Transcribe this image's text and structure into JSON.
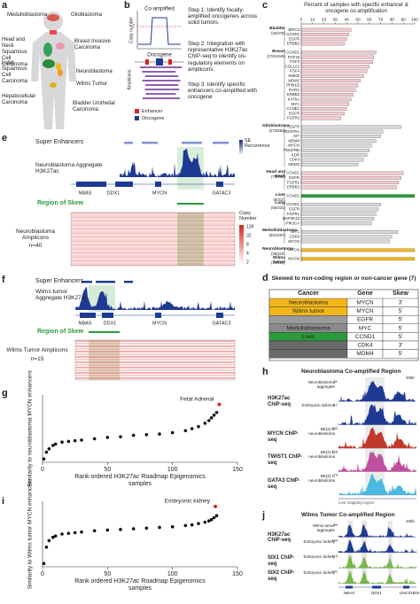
{
  "panel_labels": [
    "a",
    "b",
    "c",
    "d",
    "e",
    "f",
    "g",
    "h",
    "i",
    "j"
  ],
  "panels": {
    "a": {
      "cancers": [
        "Medulloblastoma",
        "Glioblastoma",
        "Head and Neck Squamous Cell Carcinoma",
        "Breast Invasive Carcinoma",
        "Lung Squamous Cell Carcinoma",
        "Neuroblastoma",
        "Wilms Tumor",
        "Hepatocellular Carcinoma",
        "Bladder Urothelial Carcinoma"
      ]
    },
    "b": {
      "coamplified": "Co-amplified",
      "y_label": "Copy number",
      "threshold": "7",
      "oncogene": "Oncogene",
      "amplicons": "Amplicons",
      "legend": [
        "Enhancer",
        "Oncogene"
      ],
      "steps": [
        "Step 1: Identify focally-amplified oncogenes across solid tumors.",
        "Step 2: Integration with representative H3K27ac ChIP-seq to identify cis-regulatory elements on amplicons.",
        "Step 3: Identify specific enhancers co-amplified with oncogene"
      ]
    },
    "d": {
      "title": "Skewed to non-coding region or non-cancer gene (7)",
      "headers": [
        "Cancer",
        "Gene",
        "Skew"
      ],
      "rows": [
        {
          "cancer": "Neuroblastoma",
          "gene": "MYCN",
          "skew": "3'",
          "color": "#f3b71c",
          "gene_color": "#d7261e"
        },
        {
          "cancer": "Wilms tumor",
          "gene": "MYCN",
          "skew": "5'",
          "color": "#f3b71c",
          "gene_color": "#d7261e"
        },
        {
          "gene": "EGFR",
          "skew": "5'",
          "color": "#9a9a9a",
          "gene_color": "#d7261e"
        },
        {
          "cancer": "Medulloblastoma",
          "gene": "MYC",
          "skew": "5'",
          "color": "#8a8a8a",
          "gene_color": "#d7261e"
        },
        {
          "cancer": "Liver",
          "gene": "CCND1",
          "skew": "5'",
          "color": "#2a9a3a",
          "gene_color": "#222222"
        },
        {
          "gene": "CDK4",
          "skew": "3'",
          "color": "#6a6a6a",
          "gene_color": "#222222"
        },
        {
          "gene": "MDM4",
          "skew": "5'",
          "color": "#6a6a6a",
          "gene_color": "#222222"
        }
      ]
    },
    "e": {
      "super_enhancers": "Super Enhancers",
      "se_recurrence": "SE Recurrence",
      "track": "Neuroblastoma Aggregate H3K27ac",
      "genes": [
        "NBAS",
        "DDX1",
        "MYCN",
        "GATAC3"
      ],
      "skew": "Region of Skew",
      "amplicons": "Neuroblastoma Amplicons",
      "n": "n=40",
      "copy_number": "Copy Number",
      "scale": [
        "128",
        "32",
        "8",
        "4",
        "2"
      ]
    },
    "f": {
      "super_enhancers": "Super Enhancers",
      "track": "Wilms tumor Aggregate H3K27ac",
      "genes": [
        "NBAS",
        "DDX1",
        "MYCN",
        "GATAC3"
      ],
      "skew": "Region of Skew",
      "amplicons": "Wilms Tumor Amplicons",
      "n": "n=15"
    },
    "h": {
      "title": "Neuroblastoma Co-amplified Region",
      "scale": "20kb",
      "note": "Live mapping region",
      "tracks": [
        {
          "assay": "H3K27ac ChIP-seq",
          "color": "#1f3a93",
          "samples": [
            {
              "name": "Neuroblastoma aggregate",
              "max": "11"
            },
            {
              "name": "Embryonic adrenal",
              "max": "17"
            }
          ]
        },
        {
          "assay": "MYCN ChIP-seq",
          "color": "#c0392b",
          "samples": [
            {
              "name": "BE(2)-C neuroblastoma",
              "max": "352"
            }
          ]
        },
        {
          "assay": "TWIST1 ChIP-seq",
          "color": "#c04fa0",
          "samples": [
            {
              "name": "BE(2)-C neuroblastoma",
              "max": "128"
            }
          ]
        },
        {
          "assay": "GATA3 ChIP-seq",
          "color": "#4ab8e0",
          "samples": [
            {
              "name": "BE(2)-C neuroblastoma",
              "max": "74"
            }
          ]
        }
      ]
    },
    "j": {
      "title": "Wilms Tumor Co-amplified Region",
      "scale": "20kb",
      "genes": [
        "NBAS",
        "DDX1",
        "LINC01804"
      ],
      "tracks": [
        {
          "assay": "H3K27ac ChIP-seq",
          "color": "#1f3a93",
          "samples": [
            {
              "name": "Wilms tumor aggregate",
              "max": "59"
            },
            {
              "name": "Embryonic kidney",
              "max": "184"
            }
          ]
        },
        {
          "assay": "SIX1 ChIP-seq",
          "color": "#7ab648",
          "samples": [
            {
              "name": "Embryonic kidney",
              "max": "114"
            }
          ]
        },
        {
          "assay": "SIX2 ChIP-seq",
          "color": "#7ab648",
          "samples": [
            {
              "name": "Embryonic kidney",
              "max": "141"
            }
          ]
        }
      ]
    }
  },
  "chart_data": [
    {
      "type": "bar",
      "orientation": "horizontal",
      "title": "Percent of samples with specific enhancer & oncogene co-amplification",
      "xlim": [
        0,
        100
      ],
      "xticks": [
        0,
        10,
        20,
        30,
        40,
        50,
        60,
        70,
        80,
        90,
        100
      ],
      "groups": [
        {
          "name": "Bladder",
          "n": "(34/278)",
          "color": "#f4c9cf",
          "categories": [
            "BIRC3",
            "CCND1",
            "EGFR",
            "ERBB2"
          ],
          "values": [
            44,
            42,
            40,
            38
          ]
        },
        {
          "name": "Breast",
          "n": "(178/1045)",
          "color": "#f4c9cf",
          "categories": [
            "CCND1",
            "FGF19",
            "FGF3",
            "COL1A1",
            "FGF4",
            "IKBKB",
            "MDM2",
            "PPM1D",
            "RARA",
            "ERBB2",
            "KAT6A",
            "MYC",
            "CCNE1",
            "EGFR",
            "FGFR2"
          ],
          "values": [
            66,
            64,
            63,
            60,
            58,
            55,
            52,
            50,
            48,
            46,
            44,
            42,
            40,
            38,
            35
          ]
        },
        {
          "name": "Glioblastoma",
          "n": "(273/581)",
          "color": "#d9d9d9",
          "categories": [
            "EGFR",
            "PDGFRA",
            "KIT",
            "MDM4",
            "MYCN",
            "PDGFRB",
            "KDR",
            "CDK4",
            "MDM2"
          ],
          "values": [
            88,
            72,
            70,
            66,
            62,
            60,
            58,
            55,
            50
          ]
        },
        {
          "name": "Head and Neck",
          "n": "(78/492)",
          "color": "#f4c9cf",
          "categories": [
            "CCND1",
            "EGFR",
            "FGFR1",
            "ERBB2"
          ],
          "values": [
            90,
            88,
            86,
            84
          ]
        },
        {
          "name": "Liver",
          "n": "(9/314)",
          "color": "#2a9a3a",
          "categories": [
            "CCND1"
          ],
          "values": [
            100
          ]
        },
        {
          "name": "Lung",
          "n": "(55/431)",
          "color": "#d9d9d9",
          "categories": [
            "CCND1",
            "EGFR",
            "FGFR1",
            "MAP3K13",
            "PIK3CA"
          ],
          "values": [
            70,
            68,
            66,
            64,
            62
          ]
        },
        {
          "name": "Medulloblastoma",
          "n": "(63/1097)",
          "color": "#d9d9d9",
          "categories": [
            "MYC",
            "CDK6",
            "MYCN"
          ],
          "values": [
            85,
            80,
            78
          ]
        },
        {
          "name": "Neuroblastoma",
          "n": "(39/215)",
          "color": "#f3b71c",
          "categories": [
            "MYCN"
          ],
          "values": [
            100
          ]
        },
        {
          "name": "Wilms tumor",
          "n": "(14/124)",
          "color": "#f3b71c",
          "categories": [
            "MYCN"
          ],
          "values": [
            100
          ]
        }
      ]
    },
    {
      "type": "scatter",
      "xlabel": "Rank ordered H3K27ac Roadmap Epigenomics samples",
      "ylabel": "Similarity to neuroblastoma MYCN enhancers",
      "xlim": [
        0,
        150
      ],
      "xticks": [
        0,
        50,
        100,
        150
      ],
      "ylim": [
        0,
        1
      ],
      "color": "#111111",
      "x": [
        1,
        3,
        5,
        8,
        10,
        15,
        20,
        25,
        30,
        40,
        50,
        60,
        70,
        80,
        90,
        100,
        110,
        115,
        120,
        125,
        128,
        130,
        132,
        134
      ],
      "values": [
        0.05,
        0.15,
        0.2,
        0.25,
        0.27,
        0.3,
        0.31,
        0.32,
        0.33,
        0.35,
        0.37,
        0.38,
        0.4,
        0.41,
        0.42,
        0.44,
        0.47,
        0.5,
        0.53,
        0.58,
        0.62,
        0.66,
        0.7,
        0.74
      ],
      "highlight": {
        "x": 136,
        "y": 0.86,
        "color": "#d7261e",
        "label": "Fetal Adrenal"
      }
    },
    {
      "type": "scatter",
      "xlabel": "Rank ordered H3K27ac Roadmap Epigenomics samples",
      "ylabel": "Similarity to Wilms tumor MYCN enhancers",
      "xlim": [
        0,
        150
      ],
      "xticks": [
        0,
        50,
        100,
        150
      ],
      "ylim": [
        0,
        1
      ],
      "color": "#111111",
      "x": [
        1,
        3,
        5,
        8,
        10,
        15,
        20,
        25,
        30,
        40,
        50,
        60,
        70,
        80,
        90,
        100,
        110,
        115,
        120,
        125,
        128,
        130,
        132,
        134
      ],
      "values": [
        0.05,
        0.3,
        0.4,
        0.45,
        0.47,
        0.5,
        0.51,
        0.52,
        0.53,
        0.55,
        0.56,
        0.57,
        0.58,
        0.59,
        0.6,
        0.61,
        0.63,
        0.64,
        0.66,
        0.68,
        0.7,
        0.72,
        0.75,
        0.78
      ],
      "highlight": {
        "x": 133,
        "y": 0.92,
        "color": "#d7261e",
        "label": "Embryonic kidney"
      }
    }
  ]
}
